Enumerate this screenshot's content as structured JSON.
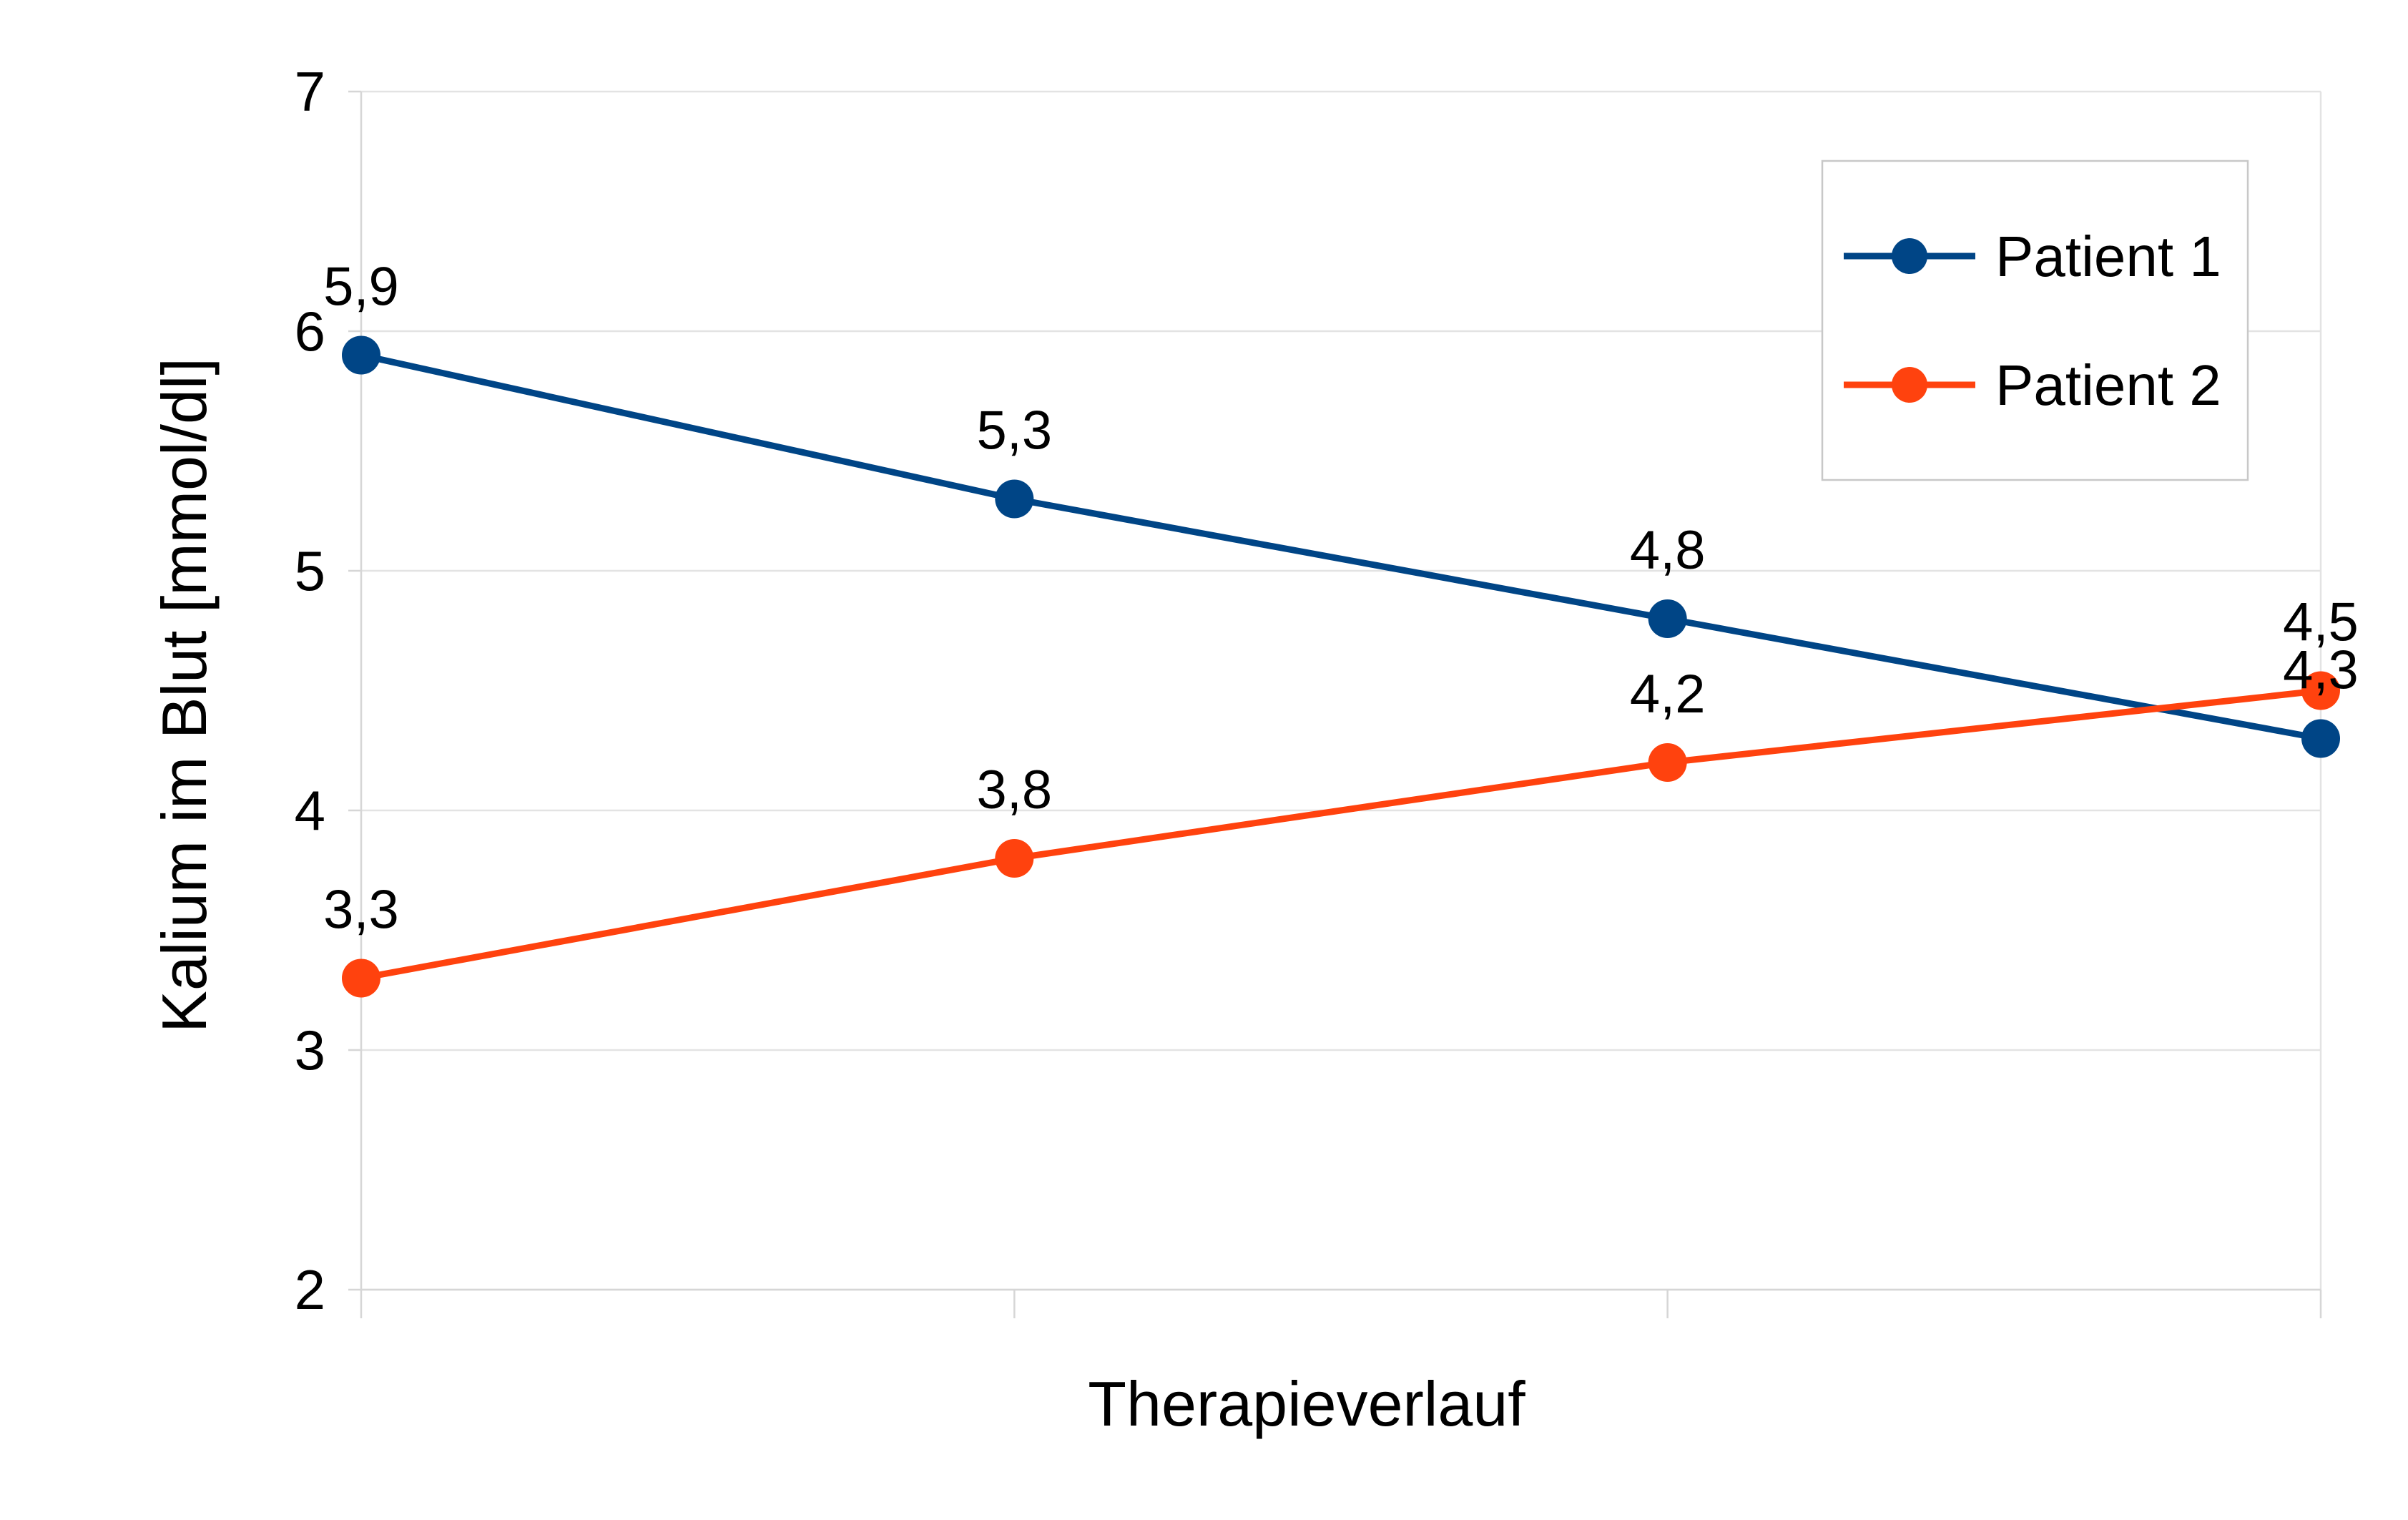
{
  "chart_data": {
    "type": "line",
    "title": "",
    "xlabel": "Therapieverlauf",
    "ylabel": "Kalium im Blut [mmol/dl]",
    "ylim": [
      2,
      7
    ],
    "yticks": [
      2,
      3,
      4,
      5,
      6,
      7
    ],
    "ytick_labels": [
      "2",
      "3",
      "4",
      "5",
      "6",
      "7"
    ],
    "categories": [
      "",
      "",
      "",
      ""
    ],
    "grid": true,
    "legend_position": "top-right",
    "series": [
      {
        "name": "Patient 1",
        "color": "#004586",
        "values": [
          5.9,
          5.3,
          4.8,
          4.3
        ],
        "labels": [
          "5,9",
          "5,3",
          "4,8",
          "4,3"
        ]
      },
      {
        "name": "Patient 2",
        "color": "#ff420e",
        "values": [
          3.3,
          3.8,
          4.2,
          4.5
        ],
        "labels": [
          "3,3",
          "3,8",
          "4,2",
          "4,5"
        ]
      }
    ]
  }
}
